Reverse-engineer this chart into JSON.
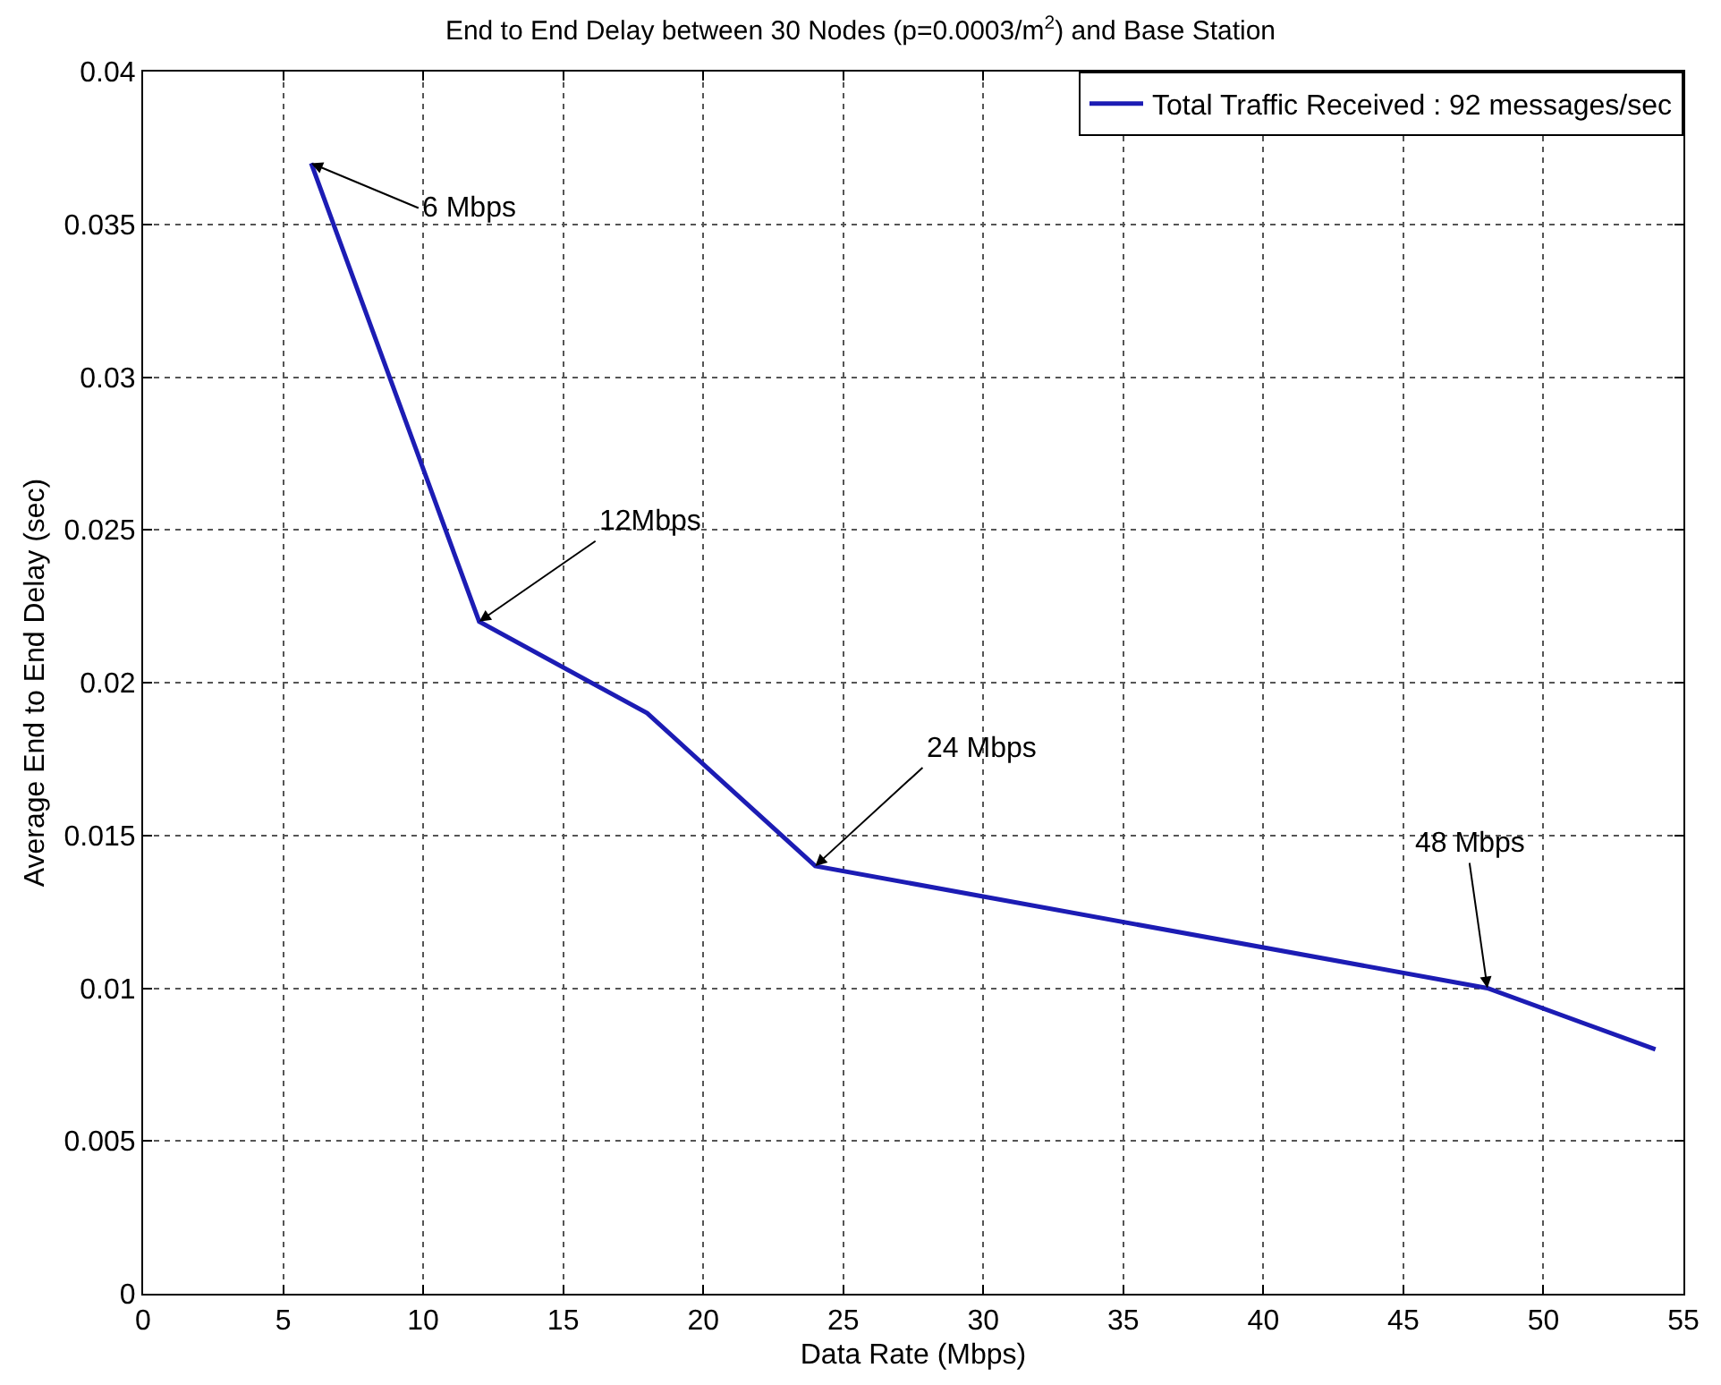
{
  "chart_data": {
    "type": "line",
    "title": "End to End Delay between 30 Nodes (p=0.0003/m$^{2}$) and Base Station",
    "xlabel": "Data Rate (Mbps)",
    "ylabel": "Average End to End Delay (sec)",
    "x": [
      6,
      12,
      18,
      24,
      48,
      54
    ],
    "series": [
      {
        "name": "Total Traffic Received : 92 messages/sec",
        "color": "#1c1cb4",
        "values": [
          0.037,
          0.022,
          0.019,
          0.014,
          0.01,
          0.008
        ]
      }
    ],
    "xlim": [
      0,
      55
    ],
    "xticks": [
      0,
      5,
      10,
      15,
      20,
      25,
      30,
      35,
      40,
      45,
      50,
      55
    ],
    "ylim": [
      0,
      0.04
    ],
    "yticks": [
      0,
      0.005,
      0.01,
      0.015,
      0.02,
      0.025,
      0.03,
      0.035,
      0.04
    ],
    "grid": true,
    "legend": "top right",
    "line_style": "solid",
    "annotations": [
      {
        "text": "6 Mbps",
        "x": 6,
        "y": 0.037
      },
      {
        "text": "12Mbps",
        "x": 12,
        "y": 0.022
      },
      {
        "text": "24 Mbps",
        "x": 24,
        "y": 0.014
      },
      {
        "text": "48 Mbps",
        "x": 48,
        "y": 0.01
      }
    ]
  }
}
